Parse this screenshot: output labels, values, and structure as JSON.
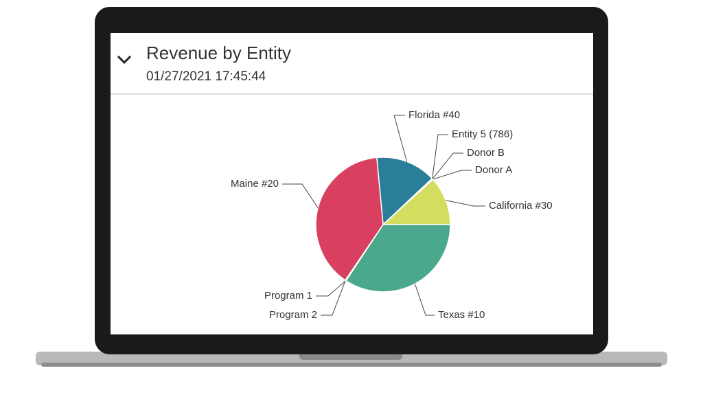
{
  "header": {
    "title": "Revenue by Entity",
    "timestamp": "01/27/2021 17:45:44"
  },
  "chart_data": {
    "type": "pie",
    "categories": [
      "Florida #40",
      "Entity 5 (786)",
      "Donor B",
      "Donor A",
      "California #30",
      "Texas #10",
      "Program 1",
      "Program 2",
      "Maine #20"
    ],
    "values": [
      14.5,
      0.1,
      0.1,
      0.1,
      11.7,
      34.3,
      0.1,
      0.1,
      39.0
    ],
    "colors": [
      "#2b7e99",
      "#3f8fa0",
      "#6fa7a8",
      "#a9c36d",
      "#d3dd5f",
      "#4aa88d",
      "#7fb7a3",
      "#c9506c",
      "#d9405f"
    ]
  }
}
